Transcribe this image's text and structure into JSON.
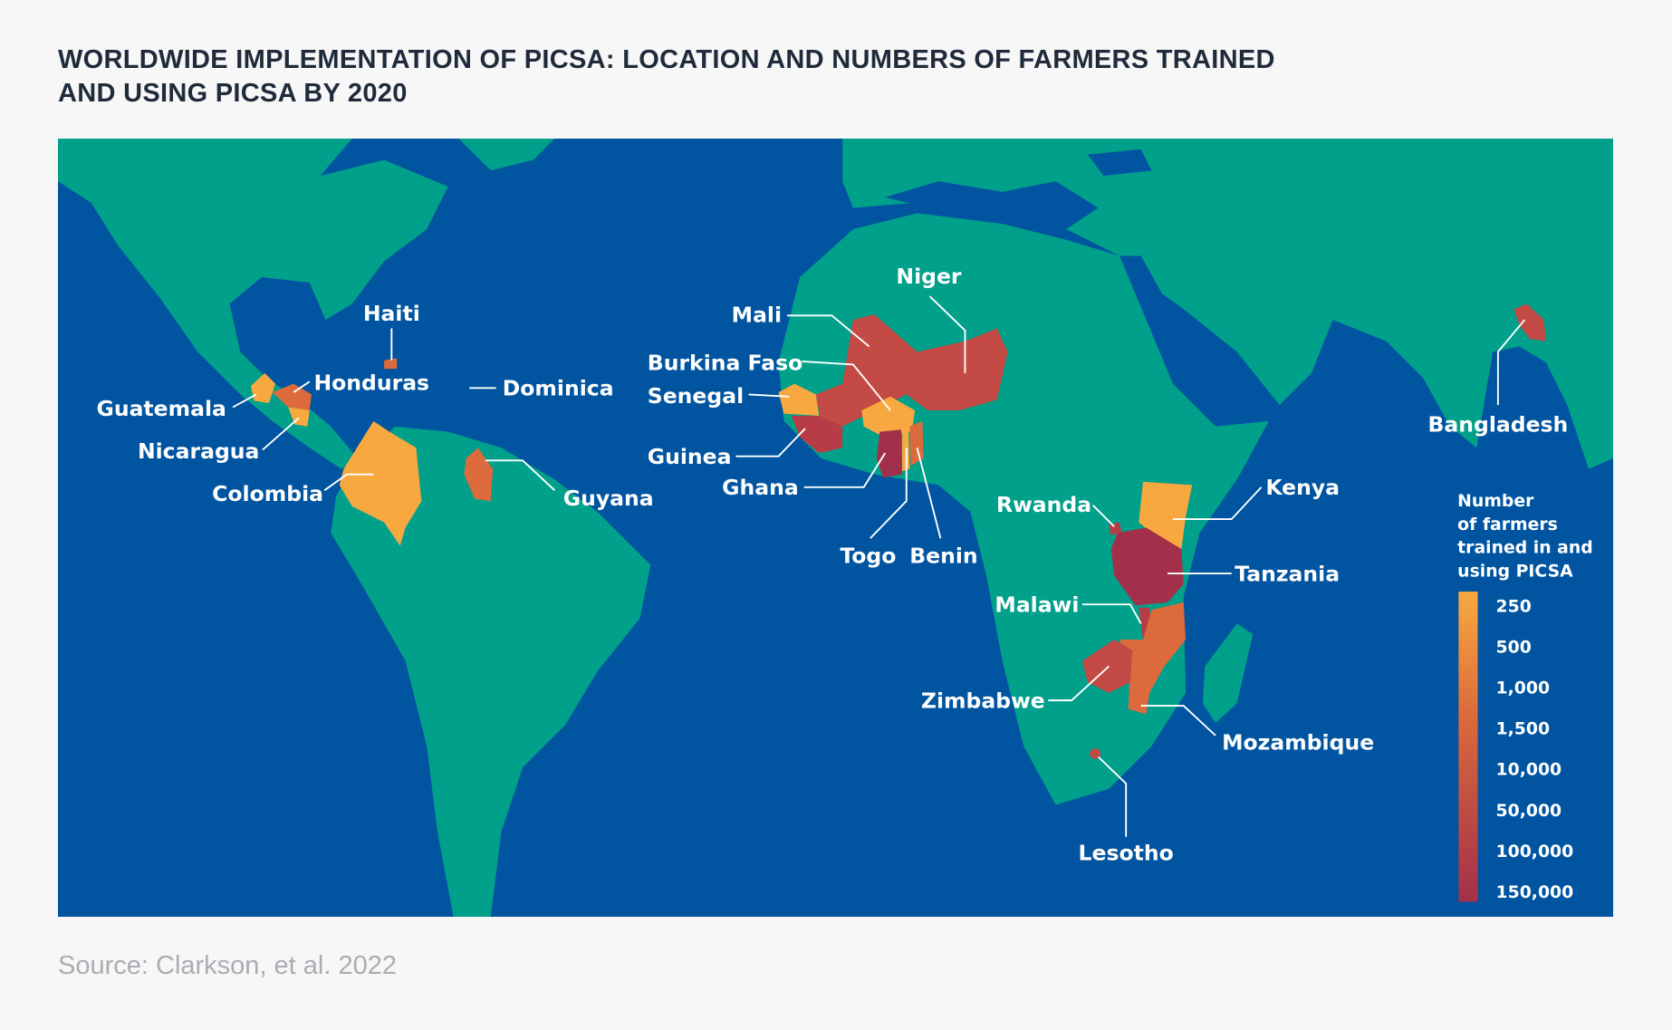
{
  "title_line1": "WORLDWIDE IMPLEMENTATION OF PICSA: LOCATION AND NUMBERS OF FARMERS TRAINED",
  "title_line2": "AND USING PICSA BY 2020",
  "source": "Source: Clarkson, et al. 2022",
  "colors": {
    "ocean": "#0054a0",
    "land": "#00a08a",
    "low": "#f7a940",
    "mid": "#dc6a3c",
    "high": "#a3304a"
  },
  "countries": {
    "haiti": "Haiti",
    "honduras": "Honduras",
    "dominica": "Dominica",
    "guatemala": "Guatemala",
    "nicaragua": "Nicaragua",
    "colombia": "Colombia",
    "guyana": "Guyana",
    "mali": "Mali",
    "niger": "Niger",
    "burkina_faso": "Burkina Faso",
    "senegal": "Senegal",
    "guinea": "Guinea",
    "ghana": "Ghana",
    "togo": "Togo",
    "benin": "Benin",
    "rwanda": "Rwanda",
    "kenya": "Kenya",
    "tanzania": "Tanzania",
    "malawi": "Malawi",
    "zimbabwe": "Zimbabwe",
    "mozambique": "Mozambique",
    "lesotho": "Lesotho",
    "bangladesh": "Bangladesh"
  },
  "legend": {
    "title": [
      "Number",
      "of farmers",
      "trained in and",
      "using PICSA"
    ],
    "ticks": [
      "250",
      "500",
      "1,000",
      "1,500",
      "10,000",
      "50,000",
      "100,000",
      "150,000"
    ]
  }
}
